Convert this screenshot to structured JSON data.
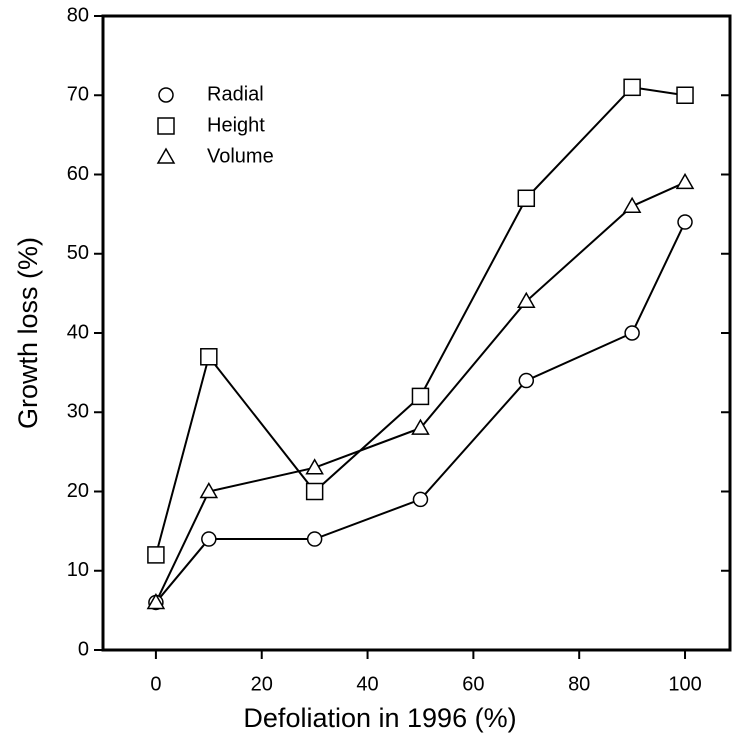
{
  "chart_data": {
    "type": "line",
    "xlabel": "Defoliation in 1996 (%)",
    "ylabel": "Growth loss (%)",
    "x": [
      0,
      10,
      30,
      50,
      70,
      90,
      100
    ],
    "series": [
      {
        "name": "Radial",
        "marker": "circle",
        "color": "#000000",
        "values": [
          6,
          14,
          14,
          19,
          34,
          40,
          54
        ]
      },
      {
        "name": "Height",
        "marker": "square",
        "color": "#000000",
        "values": [
          12,
          37,
          20,
          32,
          57,
          71,
          70
        ]
      },
      {
        "name": "Volume",
        "marker": "triangle",
        "color": "#000000",
        "values": [
          6,
          20,
          23,
          28,
          44,
          56,
          59
        ]
      }
    ],
    "xlim": [
      -10,
      108.5
    ],
    "xticks": [
      0,
      20,
      40,
      60,
      80,
      100
    ],
    "ylim": [
      0,
      80
    ],
    "yticks": [
      0,
      10,
      20,
      30,
      40,
      50,
      60,
      70,
      80
    ],
    "legend": "upper left"
  }
}
